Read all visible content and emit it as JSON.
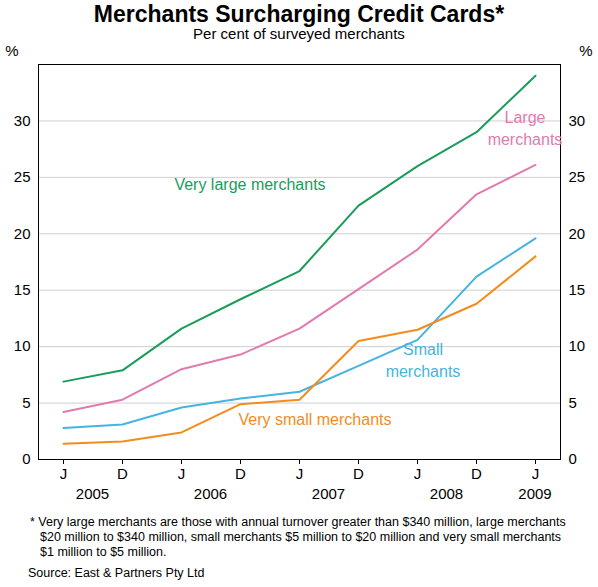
{
  "chart_data": {
    "type": "line",
    "title": "Merchants Surcharging Credit Cards*",
    "subtitle": "Per cent of surveyed merchants",
    "y_label": "%",
    "categories": [
      "J",
      "D",
      "J",
      "D",
      "J",
      "D",
      "J",
      "D",
      "J"
    ],
    "year_labels": [
      "2005",
      "2006",
      "2007",
      "2008",
      "2009"
    ],
    "series": [
      {
        "name": "Very large merchants",
        "color": "#1a9c5b",
        "values": [
          6.9,
          7.9,
          11.6,
          14.2,
          16.7,
          22.5,
          26.0,
          29.0,
          34.0
        ]
      },
      {
        "name": "Large merchants",
        "color": "#e07bb0",
        "values": [
          4.2,
          5.3,
          8.0,
          9.3,
          11.6,
          15.1,
          18.6,
          23.5,
          26.1
        ]
      },
      {
        "name": "Small merchants",
        "color": "#45b4e0",
        "values": [
          2.8,
          3.1,
          4.6,
          5.4,
          6.0,
          8.3,
          10.6,
          16.2,
          19.6
        ]
      },
      {
        "name": "Very small merchants",
        "color": "#f28c1e",
        "values": [
          1.4,
          1.6,
          2.4,
          4.9,
          5.3,
          10.5,
          11.5,
          13.8,
          18.0
        ]
      }
    ],
    "ylim": [
      0,
      35
    ],
    "yticks": [
      0,
      5,
      10,
      15,
      20,
      25,
      30
    ],
    "grid": true,
    "footnote": "* Very large merchants are those with annual turnover greater than $340 million, large merchants $20 million to $340 million, small merchants $5 million to $20 million and very small merchants $1 million to $5 million.",
    "source": "Source: East & Partners Pty Ltd"
  }
}
